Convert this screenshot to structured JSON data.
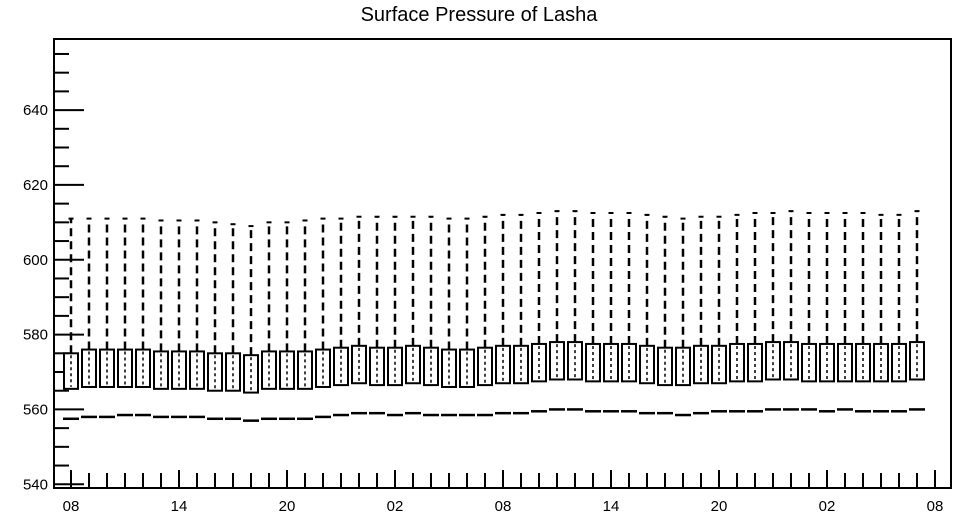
{
  "chart_data": {
    "type": "box",
    "title": "Surface Pressure of Lasha",
    "xlabel": "",
    "ylabel": "",
    "ylim": [
      539,
      659
    ],
    "y_ticks": [
      540,
      560,
      580,
      600,
      620,
      640
    ],
    "y_tick_labels": [
      "540",
      "560",
      "580",
      "600",
      "620",
      "640"
    ],
    "x_tick_labels": [
      "08",
      "14",
      "20",
      "02",
      "08",
      "14",
      "20",
      "02",
      "08"
    ],
    "x_tick_positions": [
      0,
      6,
      12,
      18,
      24,
      30,
      36,
      42,
      48
    ],
    "grid": false,
    "boxes": [
      {
        "x": 0,
        "q1": 565.5,
        "median": 570.0,
        "q3": 575.0,
        "upper": 611.0,
        "lower": 557.5
      },
      {
        "x": 1,
        "q1": 566.0,
        "median": 571.0,
        "q3": 576.0,
        "upper": 611.0,
        "lower": 558.0
      },
      {
        "x": 2,
        "q1": 566.0,
        "median": 571.0,
        "q3": 576.0,
        "upper": 611.0,
        "lower": 558.0
      },
      {
        "x": 3,
        "q1": 566.0,
        "median": 571.0,
        "q3": 576.0,
        "upper": 611.0,
        "lower": 558.5
      },
      {
        "x": 4,
        "q1": 566.0,
        "median": 571.0,
        "q3": 576.0,
        "upper": 611.0,
        "lower": 558.5
      },
      {
        "x": 5,
        "q1": 565.5,
        "median": 570.5,
        "q3": 575.5,
        "upper": 610.5,
        "lower": 558.0
      },
      {
        "x": 6,
        "q1": 565.5,
        "median": 570.5,
        "q3": 575.5,
        "upper": 610.5,
        "lower": 558.0
      },
      {
        "x": 7,
        "q1": 565.5,
        "median": 570.5,
        "q3": 575.5,
        "upper": 610.5,
        "lower": 558.0
      },
      {
        "x": 8,
        "q1": 565.0,
        "median": 570.0,
        "q3": 575.0,
        "upper": 610.0,
        "lower": 557.5
      },
      {
        "x": 9,
        "q1": 565.0,
        "median": 570.0,
        "q3": 575.0,
        "upper": 609.5,
        "lower": 557.5
      },
      {
        "x": 10,
        "q1": 564.5,
        "median": 569.5,
        "q3": 574.5,
        "upper": 609.0,
        "lower": 557.0
      },
      {
        "x": 11,
        "q1": 565.5,
        "median": 570.5,
        "q3": 575.5,
        "upper": 610.0,
        "lower": 557.5
      },
      {
        "x": 12,
        "q1": 565.5,
        "median": 570.5,
        "q3": 575.5,
        "upper": 610.0,
        "lower": 557.5
      },
      {
        "x": 13,
        "q1": 565.5,
        "median": 570.5,
        "q3": 575.5,
        "upper": 610.5,
        "lower": 557.5
      },
      {
        "x": 14,
        "q1": 566.0,
        "median": 571.0,
        "q3": 576.0,
        "upper": 611.0,
        "lower": 558.0
      },
      {
        "x": 15,
        "q1": 566.5,
        "median": 571.5,
        "q3": 576.5,
        "upper": 611.0,
        "lower": 558.5
      },
      {
        "x": 16,
        "q1": 567.0,
        "median": 572.0,
        "q3": 577.0,
        "upper": 611.5,
        "lower": 559.0
      },
      {
        "x": 17,
        "q1": 566.5,
        "median": 571.5,
        "q3": 576.5,
        "upper": 611.5,
        "lower": 559.0
      },
      {
        "x": 18,
        "q1": 566.5,
        "median": 571.5,
        "q3": 576.5,
        "upper": 611.5,
        "lower": 558.5
      },
      {
        "x": 19,
        "q1": 567.0,
        "median": 572.0,
        "q3": 577.0,
        "upper": 611.5,
        "lower": 559.0
      },
      {
        "x": 20,
        "q1": 566.5,
        "median": 571.5,
        "q3": 576.5,
        "upper": 611.5,
        "lower": 558.5
      },
      {
        "x": 21,
        "q1": 566.0,
        "median": 571.0,
        "q3": 576.0,
        "upper": 611.0,
        "lower": 558.5
      },
      {
        "x": 22,
        "q1": 566.0,
        "median": 571.0,
        "q3": 576.0,
        "upper": 611.0,
        "lower": 558.5
      },
      {
        "x": 23,
        "q1": 566.5,
        "median": 571.5,
        "q3": 576.5,
        "upper": 611.5,
        "lower": 558.5
      },
      {
        "x": 24,
        "q1": 567.0,
        "median": 572.0,
        "q3": 577.0,
        "upper": 612.0,
        "lower": 559.0
      },
      {
        "x": 25,
        "q1": 567.0,
        "median": 572.0,
        "q3": 577.0,
        "upper": 612.0,
        "lower": 559.0
      },
      {
        "x": 26,
        "q1": 567.5,
        "median": 572.5,
        "q3": 577.5,
        "upper": 612.5,
        "lower": 559.5
      },
      {
        "x": 27,
        "q1": 568.0,
        "median": 573.0,
        "q3": 578.0,
        "upper": 613.0,
        "lower": 560.0
      },
      {
        "x": 28,
        "q1": 568.0,
        "median": 573.0,
        "q3": 578.0,
        "upper": 613.0,
        "lower": 560.0
      },
      {
        "x": 29,
        "q1": 567.5,
        "median": 572.5,
        "q3": 577.5,
        "upper": 612.5,
        "lower": 559.5
      },
      {
        "x": 30,
        "q1": 567.5,
        "median": 572.5,
        "q3": 577.5,
        "upper": 612.5,
        "lower": 559.5
      },
      {
        "x": 31,
        "q1": 567.5,
        "median": 572.5,
        "q3": 577.5,
        "upper": 612.5,
        "lower": 559.5
      },
      {
        "x": 32,
        "q1": 567.0,
        "median": 572.0,
        "q3": 577.0,
        "upper": 612.0,
        "lower": 559.0
      },
      {
        "x": 33,
        "q1": 566.5,
        "median": 571.5,
        "q3": 576.5,
        "upper": 611.5,
        "lower": 559.0
      },
      {
        "x": 34,
        "q1": 566.5,
        "median": 571.5,
        "q3": 576.5,
        "upper": 611.0,
        "lower": 558.5
      },
      {
        "x": 35,
        "q1": 567.0,
        "median": 572.0,
        "q3": 577.0,
        "upper": 611.5,
        "lower": 559.0
      },
      {
        "x": 36,
        "q1": 567.0,
        "median": 572.0,
        "q3": 577.0,
        "upper": 611.5,
        "lower": 559.5
      },
      {
        "x": 37,
        "q1": 567.5,
        "median": 572.5,
        "q3": 577.5,
        "upper": 612.0,
        "lower": 559.5
      },
      {
        "x": 38,
        "q1": 567.5,
        "median": 572.5,
        "q3": 577.5,
        "upper": 612.5,
        "lower": 559.5
      },
      {
        "x": 39,
        "q1": 568.0,
        "median": 573.0,
        "q3": 578.0,
        "upper": 612.5,
        "lower": 560.0
      },
      {
        "x": 40,
        "q1": 568.0,
        "median": 573.0,
        "q3": 578.0,
        "upper": 613.0,
        "lower": 560.0
      },
      {
        "x": 41,
        "q1": 567.5,
        "median": 572.5,
        "q3": 577.5,
        "upper": 612.5,
        "lower": 560.0
      },
      {
        "x": 42,
        "q1": 567.5,
        "median": 572.5,
        "q3": 577.5,
        "upper": 612.5,
        "lower": 559.5
      },
      {
        "x": 43,
        "q1": 567.5,
        "median": 572.5,
        "q3": 577.5,
        "upper": 612.5,
        "lower": 560.0
      },
      {
        "x": 44,
        "q1": 567.5,
        "median": 572.5,
        "q3": 577.5,
        "upper": 612.5,
        "lower": 559.5
      },
      {
        "x": 45,
        "q1": 567.5,
        "median": 572.5,
        "q3": 577.5,
        "upper": 612.0,
        "lower": 559.5
      },
      {
        "x": 46,
        "q1": 567.5,
        "median": 572.5,
        "q3": 577.5,
        "upper": 612.0,
        "lower": 559.5
      },
      {
        "x": 47,
        "q1": 568.0,
        "median": 573.0,
        "q3": 578.0,
        "upper": 613.0,
        "lower": 560.0
      }
    ]
  }
}
